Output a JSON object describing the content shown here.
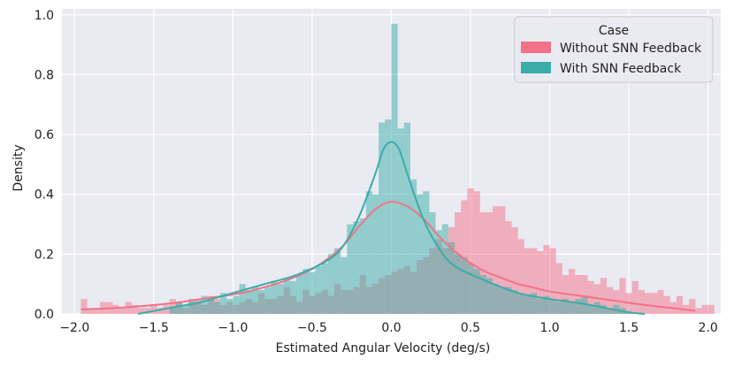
{
  "chart_data": {
    "type": "histogram",
    "xlabel": "Estimated Angular Velocity (deg/s)",
    "ylabel": "Density",
    "xlim": [
      -2.08,
      2.08
    ],
    "ylim": [
      0.0,
      1.02
    ],
    "x_ticks": [
      -2.0,
      -1.5,
      -1.0,
      -0.5,
      0.0,
      0.5,
      1.0,
      1.5,
      2.0
    ],
    "x_tick_labels": [
      "−2.0",
      "−1.5",
      "−1.0",
      "−0.5",
      "0.0",
      "0.5",
      "1.0",
      "1.5",
      "2.0"
    ],
    "y_ticks": [
      0.0,
      0.2,
      0.4,
      0.6,
      0.8,
      1.0
    ],
    "y_tick_labels": [
      "0.0",
      "0.2",
      "0.4",
      "0.6",
      "0.8",
      "1.0"
    ],
    "grid": true,
    "legend": {
      "title": "Case",
      "position": "top-right",
      "entries": [
        "Without SNN Feedback",
        "With SNN Feedback"
      ]
    },
    "bin_width": 0.04,
    "series": [
      {
        "name": "Without SNN Feedback",
        "color": "#f37287",
        "hist": {
          "x_start": -1.96,
          "x_end": 1.92,
          "values": [
            0.05,
            0.02,
            0.02,
            0.04,
            0.04,
            0.03,
            0.02,
            0.04,
            0.03,
            0.02,
            0.02,
            0.03,
            0.02,
            0.03,
            0.05,
            0.04,
            0.02,
            0.04,
            0.05,
            0.03,
            0.06,
            0.05,
            0.03,
            0.04,
            0.03,
            0.04,
            0.05,
            0.04,
            0.07,
            0.05,
            0.05,
            0.06,
            0.09,
            0.06,
            0.04,
            0.08,
            0.06,
            0.07,
            0.08,
            0.06,
            0.1,
            0.08,
            0.08,
            0.09,
            0.13,
            0.09,
            0.1,
            0.12,
            0.13,
            0.14,
            0.15,
            0.16,
            0.14,
            0.18,
            0.19,
            0.22,
            0.25,
            0.22,
            0.29,
            0.34,
            0.38,
            0.42,
            0.41,
            0.34,
            0.34,
            0.36,
            0.36,
            0.31,
            0.29,
            0.25,
            0.22,
            0.22,
            0.21,
            0.23,
            0.22,
            0.17,
            0.13,
            0.15,
            0.13,
            0.13,
            0.11,
            0.1,
            0.12,
            0.09,
            0.08,
            0.12,
            0.07,
            0.11,
            0.08,
            0.07,
            0.07,
            0.08,
            0.06,
            0.04,
            0.06,
            0.03,
            0.05,
            0.02,
            0.03,
            0.03
          ]
        },
        "kde": {
          "x": [
            -1.96,
            -1.8,
            -1.6,
            -1.4,
            -1.2,
            -1.0,
            -0.9,
            -0.8,
            -0.7,
            -0.6,
            -0.5,
            -0.4,
            -0.3,
            -0.2,
            -0.1,
            0.0,
            0.1,
            0.2,
            0.3,
            0.4,
            0.5,
            0.6,
            0.7,
            0.8,
            0.9,
            1.0,
            1.2,
            1.4,
            1.6,
            1.8,
            1.92
          ],
          "y": [
            0.015,
            0.018,
            0.025,
            0.035,
            0.05,
            0.065,
            0.075,
            0.09,
            0.105,
            0.125,
            0.15,
            0.185,
            0.23,
            0.295,
            0.35,
            0.375,
            0.36,
            0.32,
            0.26,
            0.21,
            0.17,
            0.14,
            0.12,
            0.1,
            0.088,
            0.075,
            0.06,
            0.045,
            0.03,
            0.018,
            0.01
          ]
        }
      },
      {
        "name": "With SNN Feedback",
        "color": "#3aada8",
        "hist": {
          "x_start": -1.4,
          "x_end": 1.52,
          "values": [
            0.02,
            0.04,
            0.03,
            0.05,
            0.04,
            0.06,
            0.05,
            0.04,
            0.07,
            0.05,
            0.06,
            0.1,
            0.08,
            0.09,
            0.08,
            0.09,
            0.11,
            0.1,
            0.12,
            0.11,
            0.13,
            0.15,
            0.14,
            0.16,
            0.17,
            0.2,
            0.22,
            0.19,
            0.3,
            0.31,
            0.32,
            0.41,
            0.4,
            0.64,
            0.65,
            0.97,
            0.62,
            0.64,
            0.45,
            0.4,
            0.41,
            0.34,
            0.28,
            0.3,
            0.24,
            0.2,
            0.19,
            0.17,
            0.15,
            0.13,
            0.12,
            0.1,
            0.09,
            0.09,
            0.08,
            0.07,
            0.06,
            0.07,
            0.05,
            0.06,
            0.05,
            0.04,
            0.05,
            0.04,
            0.05,
            0.06,
            0.03,
            0.04,
            0.03,
            0.02,
            0.03,
            0.02,
            0.01
          ]
        },
        "kde": {
          "x": [
            -1.6,
            -1.4,
            -1.2,
            -1.0,
            -0.8,
            -0.6,
            -0.4,
            -0.3,
            -0.2,
            -0.1,
            -0.05,
            0.0,
            0.05,
            0.1,
            0.2,
            0.3,
            0.4,
            0.6,
            0.8,
            1.0,
            1.2,
            1.4,
            1.5,
            1.6
          ],
          "y": [
            0.0,
            0.02,
            0.04,
            0.07,
            0.1,
            0.13,
            0.18,
            0.23,
            0.33,
            0.47,
            0.55,
            0.575,
            0.55,
            0.47,
            0.32,
            0.22,
            0.16,
            0.11,
            0.07,
            0.05,
            0.035,
            0.015,
            0.005,
            0.0
          ]
        }
      }
    ]
  }
}
